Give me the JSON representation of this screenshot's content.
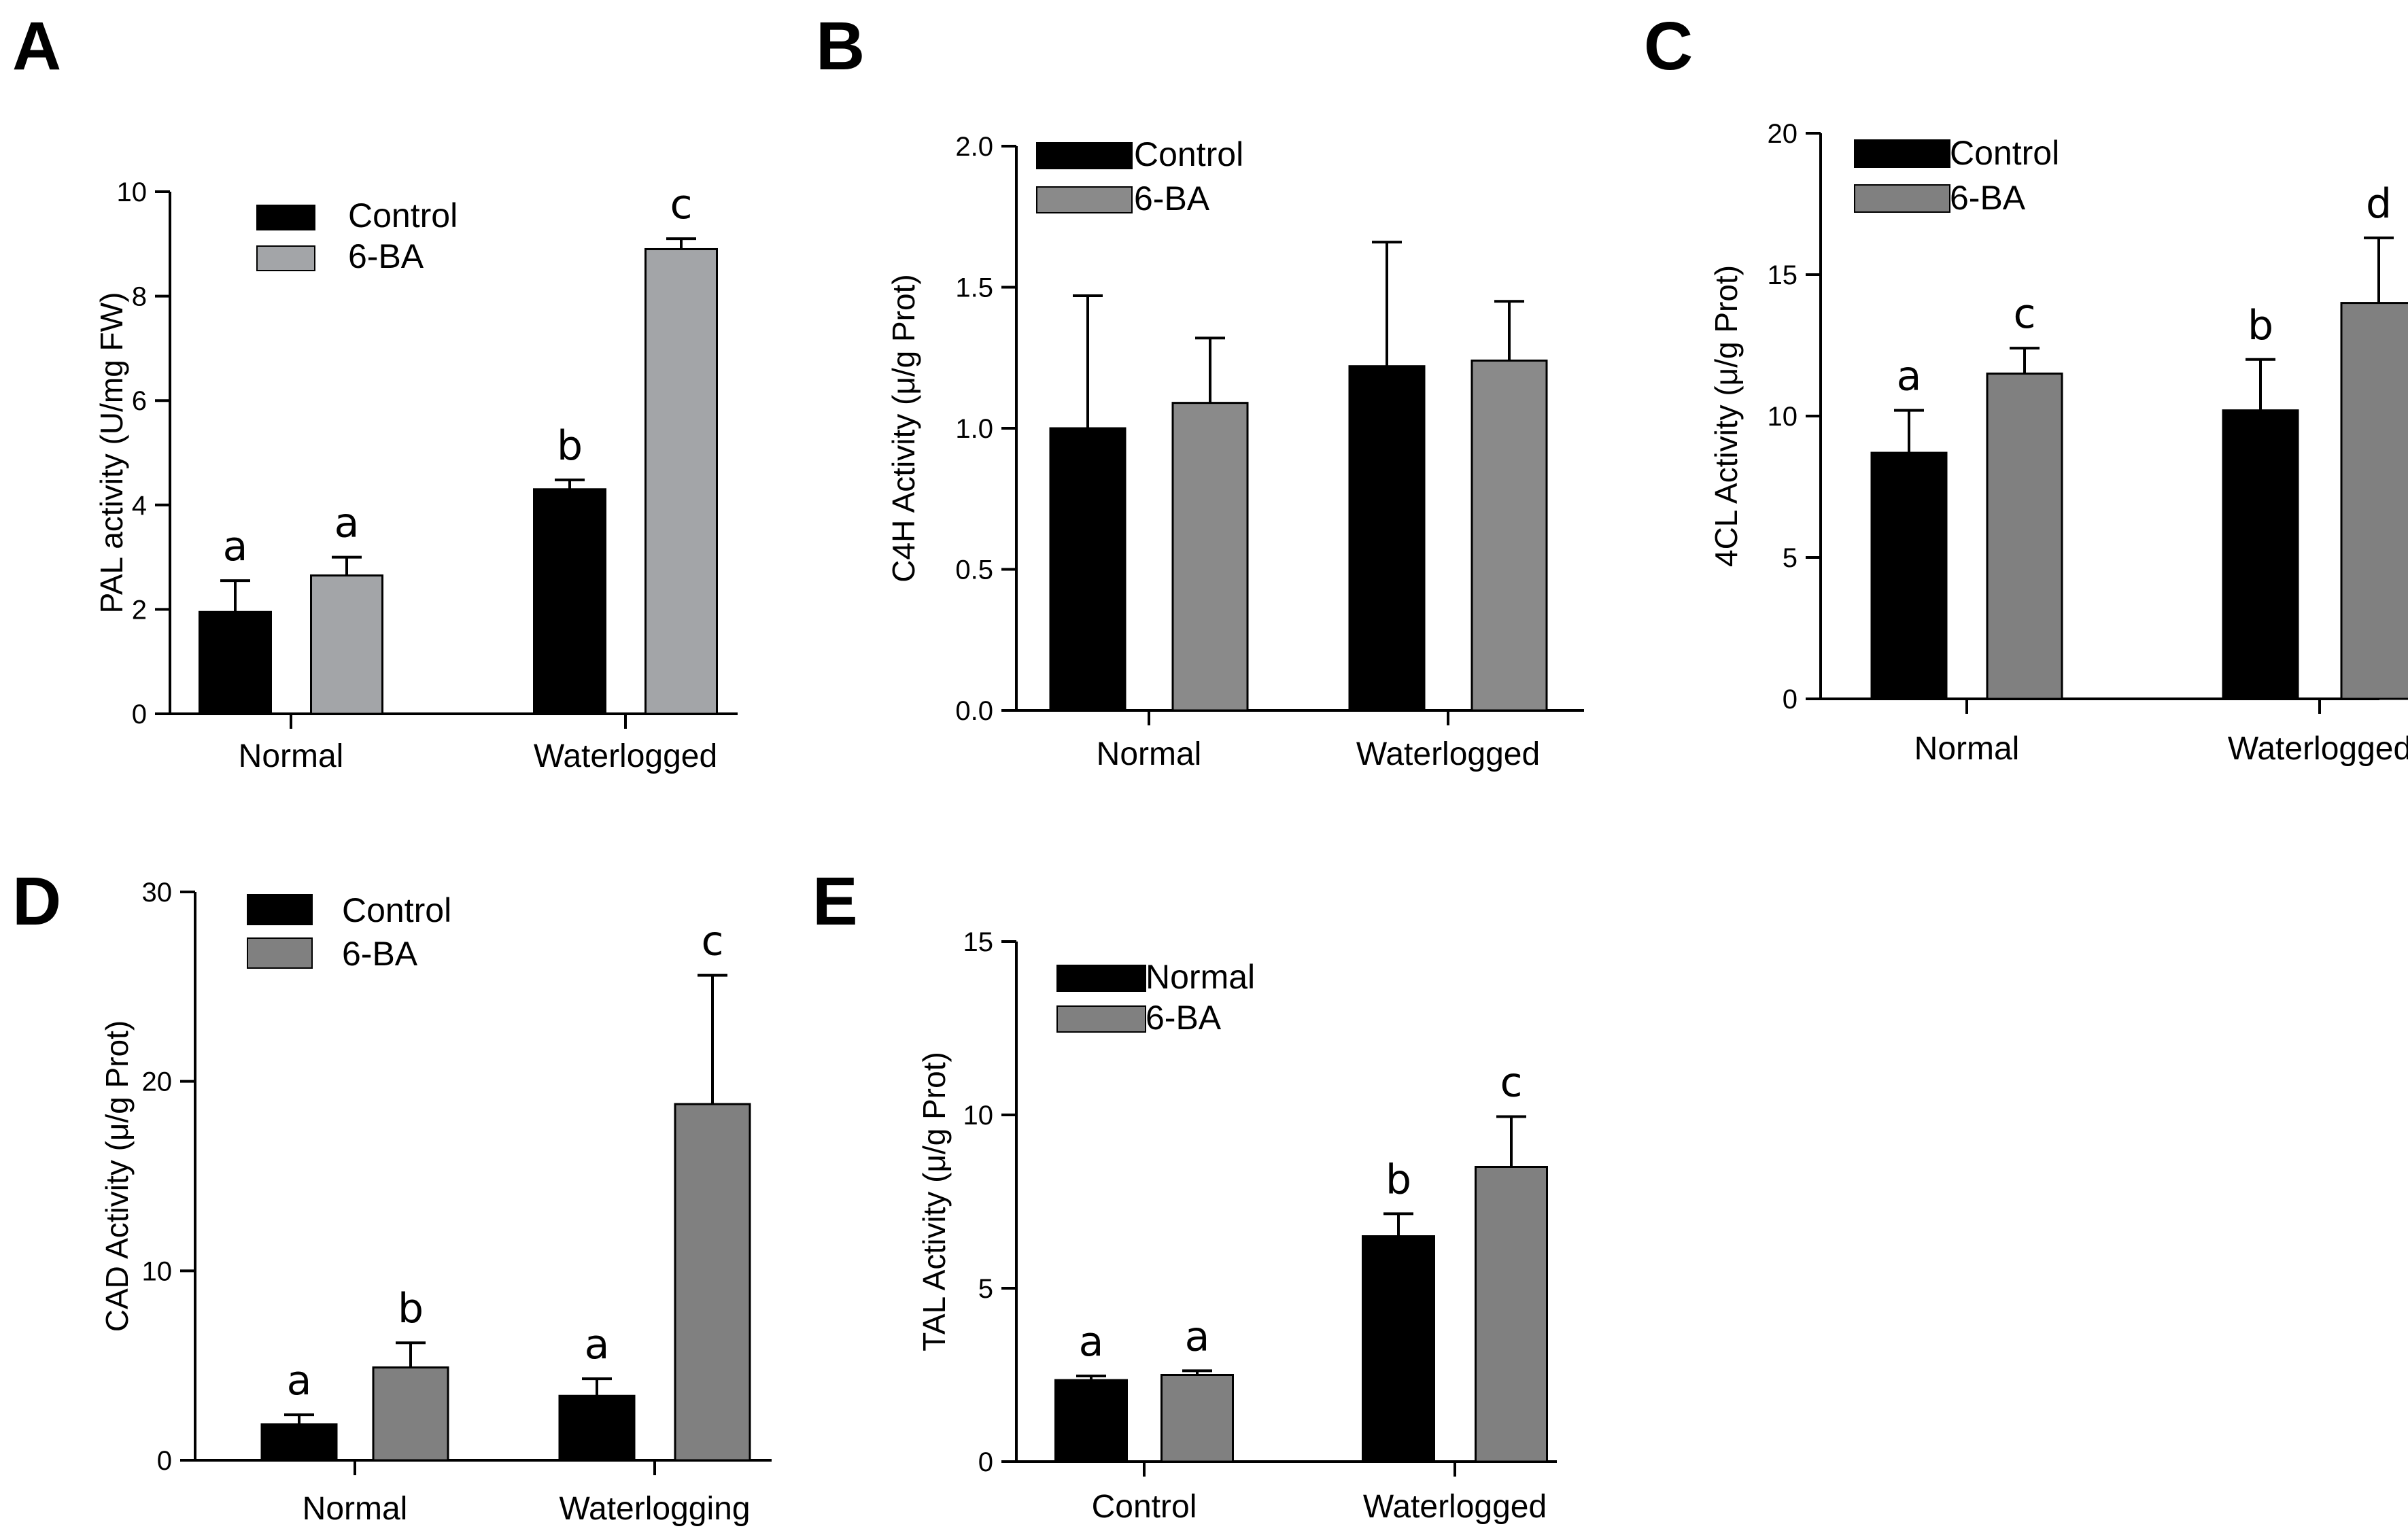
{
  "chart_data": [
    {
      "panel": "A",
      "type": "bar",
      "ylabel": "PAL activity (U/mg FW)",
      "ylim": [
        0,
        10
      ],
      "yticks": [
        "0",
        "2",
        "4",
        "6",
        "8",
        "10"
      ],
      "categories": [
        "Normal",
        "Waterlogged"
      ],
      "series": [
        {
          "name": "Control",
          "color": "#000000",
          "values": [
            1.95,
            4.3
          ],
          "errors": [
            0.6,
            0.18
          ],
          "letters": [
            "a",
            "b"
          ]
        },
        {
          "name": "6-BA",
          "color": "#a3a5a8",
          "values": [
            2.65,
            8.9
          ],
          "errors": [
            0.35,
            0.2
          ],
          "letters": [
            "a",
            "c"
          ]
        }
      ]
    },
    {
      "panel": "B",
      "type": "bar",
      "ylabel": "C4H Activity (μ/g Prot)",
      "ylim": [
        0,
        2.0
      ],
      "yticks": [
        "0.0",
        "0.5",
        "1.0",
        "1.5",
        "2.0"
      ],
      "categories": [
        "Normal",
        "Waterlogged"
      ],
      "series": [
        {
          "name": "Control",
          "color": "#000000",
          "values": [
            1.0,
            1.22
          ],
          "errors": [
            0.47,
            0.44
          ],
          "letters": [
            "",
            ""
          ]
        },
        {
          "name": "6-BA",
          "color": "#8a8a8a",
          "values": [
            1.09,
            1.24
          ],
          "errors": [
            0.23,
            0.21
          ],
          "letters": [
            "",
            ""
          ]
        }
      ]
    },
    {
      "panel": "C",
      "type": "bar",
      "ylabel": "4CL Activity (μ/g Prot)",
      "ylim": [
        0,
        20
      ],
      "yticks": [
        "0",
        "5",
        "10",
        "15",
        "20"
      ],
      "categories": [
        "Normal",
        "Waterlogged"
      ],
      "series": [
        {
          "name": "Control",
          "color": "#000000",
          "values": [
            8.7,
            10.2
          ],
          "errors": [
            1.5,
            1.8
          ],
          "letters": [
            "a",
            "b"
          ]
        },
        {
          "name": "6-BA",
          "color": "#808080",
          "values": [
            11.5,
            14.0
          ],
          "errors": [
            0.9,
            2.3
          ],
          "letters": [
            "c",
            "d"
          ]
        }
      ]
    },
    {
      "panel": "D",
      "type": "bar",
      "ylabel": "CAD Activity (μ/g Prot)",
      "ylim": [
        0,
        30
      ],
      "yticks": [
        "0",
        "10",
        "20",
        "30"
      ],
      "categories": [
        "Normal",
        "Waterlogging"
      ],
      "series": [
        {
          "name": "Control",
          "color": "#000000",
          "values": [
            1.9,
            3.4
          ],
          "errors": [
            0.5,
            0.9
          ],
          "letters": [
            "a",
            "a"
          ]
        },
        {
          "name": "6-BA",
          "color": "#808080",
          "values": [
            4.9,
            18.8
          ],
          "errors": [
            1.3,
            6.8
          ],
          "letters": [
            "b",
            "c"
          ]
        }
      ]
    },
    {
      "panel": "E",
      "type": "bar",
      "ylabel": "TAL Activity (μ/g Prot)",
      "ylim": [
        0,
        15
      ],
      "yticks": [
        "0",
        "5",
        "10",
        "15"
      ],
      "categories": [
        "Control",
        "Waterlogged"
      ],
      "series": [
        {
          "name": "Normal",
          "color": "#000000",
          "values": [
            2.35,
            6.5
          ],
          "errors": [
            0.12,
            0.65
          ],
          "letters": [
            "a",
            "b"
          ]
        },
        {
          "name": "6-BA",
          "color": "#808080",
          "values": [
            2.5,
            8.5
          ],
          "errors": [
            0.12,
            1.45
          ],
          "letters": [
            "a",
            "c"
          ]
        }
      ]
    }
  ]
}
